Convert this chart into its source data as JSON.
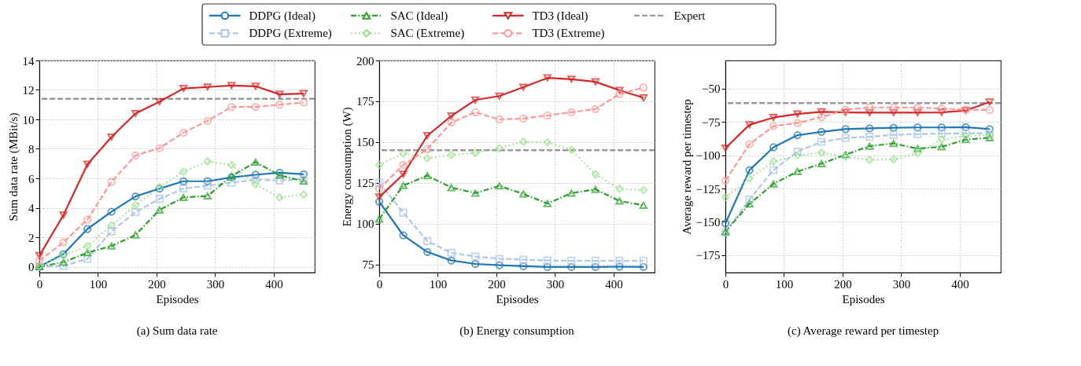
{
  "chart_data": [
    {
      "type": "line",
      "title": "(a) Sum data rate",
      "xlabel": "Episodes",
      "ylabel": "Sum data rate (MBit/s)",
      "x": [
        0,
        41,
        82,
        123,
        164,
        205,
        246,
        287,
        328,
        369,
        410,
        451
      ],
      "xlim": [
        0,
        470
      ],
      "xticks": [
        0,
        100,
        200,
        300,
        400
      ],
      "ylim": [
        -0.4,
        14
      ],
      "yticks": [
        0,
        2,
        4,
        6,
        8,
        10,
        12,
        14
      ],
      "grid": true,
      "legend": "top",
      "series": [
        {
          "name": "DDPG (Ideal)",
          "color": "#1f77b4",
          "marker": "circle",
          "line_style": "solid",
          "values": [
            0.0,
            0.85,
            2.56,
            3.73,
            4.77,
            5.3,
            5.8,
            5.8,
            6.06,
            6.24,
            6.38,
            6.27
          ]
        },
        {
          "name": "DDPG (Extreme)",
          "color": "#aec7e8",
          "marker": "square",
          "line_style": "dashed",
          "values": [
            0.0,
            0.05,
            0.53,
            2.4,
            3.7,
            4.6,
            5.3,
            5.5,
            5.7,
            5.9,
            5.85,
            5.95
          ]
        },
        {
          "name": "SAC (Ideal)",
          "color": "#2ca02c",
          "marker": "triangle",
          "line_style": "dashdot",
          "values": [
            0.0,
            0.3,
            0.95,
            1.4,
            2.15,
            3.85,
            4.7,
            4.8,
            6.15,
            7.1,
            6.2,
            5.8
          ]
        },
        {
          "name": "SAC (Extreme)",
          "color": "#98df8a",
          "marker": "diamond",
          "line_style": "dotted",
          "values": [
            0.05,
            0.75,
            1.4,
            2.8,
            4.17,
            5.4,
            6.45,
            7.15,
            6.9,
            5.6,
            4.7,
            4.9
          ]
        },
        {
          "name": "TD3 (Ideal)",
          "color": "#d62728",
          "marker": "triangle-down",
          "line_style": "solid",
          "values": [
            0.75,
            3.5,
            6.95,
            8.8,
            10.4,
            11.2,
            12.1,
            12.2,
            12.3,
            12.25,
            11.7,
            11.75
          ]
        },
        {
          "name": "TD3 (Extreme)",
          "color": "#ff9896",
          "marker": "circle",
          "line_style": "dashed",
          "values": [
            0.4,
            1.65,
            3.2,
            5.75,
            7.55,
            8.05,
            9.1,
            9.9,
            10.85,
            10.85,
            11.0,
            11.15
          ]
        }
      ],
      "ref_lines": [
        {
          "axis": "y",
          "value": 11.4,
          "label": "Expert",
          "color": "#999999",
          "line_style": "dashed"
        }
      ]
    },
    {
      "type": "line",
      "title": "(b) Energy consumption",
      "xlabel": "Episodes",
      "ylabel": "Energy consumption (W)",
      "x": [
        0,
        41,
        82,
        123,
        164,
        205,
        246,
        287,
        328,
        369,
        410,
        451
      ],
      "xlim": [
        0,
        470
      ],
      "xticks": [
        0,
        100,
        200,
        300,
        400
      ],
      "ylim": [
        70,
        200
      ],
      "yticks": [
        75,
        100,
        125,
        150,
        175,
        200
      ],
      "grid": true,
      "legend": "top",
      "series": [
        {
          "name": "DDPG (Ideal)",
          "color": "#1f77b4",
          "marker": "circle",
          "line_style": "solid",
          "values": [
            113.4,
            92.8,
            82.6,
            77.4,
            75.3,
            74.5,
            73.9,
            73.4,
            73.4,
            73.4,
            73.6,
            73.4
          ]
        },
        {
          "name": "DDPG (Extreme)",
          "color": "#aec7e8",
          "marker": "square",
          "line_style": "dashed",
          "values": [
            125,
            106.7,
            89.3,
            82.1,
            79.8,
            78.5,
            77.9,
            77.4,
            77.2,
            77.2,
            77.2,
            77.2
          ]
        },
        {
          "name": "SAC (Ideal)",
          "color": "#2ca02c",
          "marker": "triangle",
          "line_style": "dashdot",
          "values": [
            102.8,
            123.4,
            129.4,
            122.1,
            118.7,
            123.1,
            118.2,
            112.3,
            118.7,
            121,
            113.9,
            111.2
          ]
        },
        {
          "name": "SAC (Extreme)",
          "color": "#98df8a",
          "marker": "diamond",
          "line_style": "dotted",
          "values": [
            136,
            143,
            140.1,
            142,
            143.3,
            146.1,
            150.2,
            149.9,
            145.2,
            130.1,
            121.3,
            120.6
          ]
        },
        {
          "name": "TD3 (Ideal)",
          "color": "#d62728",
          "marker": "triangle-down",
          "line_style": "solid",
          "values": [
            116.3,
            130.2,
            153.9,
            166,
            175.8,
            178.2,
            183.6,
            189.3,
            188.5,
            186.9,
            181.7,
            177.1
          ]
        },
        {
          "name": "TD3 (Extreme)",
          "color": "#ff9896",
          "marker": "circle",
          "line_style": "dashed",
          "values": [
            121.3,
            136,
            145.6,
            162,
            168.2,
            163.9,
            164.4,
            166.3,
            168.3,
            170.2,
            179.4,
            183.4
          ]
        }
      ],
      "ref_lines": [
        {
          "axis": "y",
          "value": 145,
          "color": "#999999",
          "line_style": "dashed"
        }
      ]
    },
    {
      "type": "line",
      "title": "(c) Average reward per timestep",
      "xlabel": "Episodes",
      "ylabel": "Average reward per timestep",
      "x": [
        0,
        41,
        82,
        123,
        164,
        205,
        246,
        287,
        328,
        369,
        410,
        451
      ],
      "xlim": [
        0,
        470
      ],
      "xticks": [
        0,
        100,
        200,
        300,
        400
      ],
      "ylim": [
        -188,
        -29
      ],
      "yticks": [
        {
          "value": -175,
          "label": "−175"
        },
        {
          "value": -150,
          "label": "−150"
        },
        {
          "value": -125,
          "label": "−125"
        },
        {
          "value": -100,
          "label": "−100"
        },
        {
          "value": -75,
          "label": "−75"
        },
        {
          "value": -50,
          "label": "−50"
        }
      ],
      "grid": true,
      "legend": "top",
      "series": [
        {
          "name": "DDPG (Ideal)",
          "color": "#1f77b4",
          "marker": "circle",
          "line_style": "solid",
          "values": [
            -151.1,
            -111.2,
            -94.1,
            -85,
            -82.5,
            -80.5,
            -79.9,
            -79.4,
            -79.2,
            -79.2,
            -79,
            -80.5
          ]
        },
        {
          "name": "DDPG (Extreme)",
          "color": "#aec7e8",
          "marker": "square",
          "line_style": "dashed",
          "values": [
            -157.9,
            -133.2,
            -111.2,
            -97.2,
            -90,
            -87.1,
            -86.2,
            -84.8,
            -84.2,
            -83.8,
            -83.6,
            -83.6
          ]
        },
        {
          "name": "SAC (Ideal)",
          "color": "#2ca02c",
          "marker": "triangle",
          "line_style": "dashdot",
          "values": [
            -157.3,
            -136.5,
            -121.5,
            -112.2,
            -106.4,
            -99.6,
            -93.2,
            -91.2,
            -95.1,
            -93.7,
            -88.3,
            -86.9
          ]
        },
        {
          "name": "SAC (Extreme)",
          "color": "#98df8a",
          "marker": "diamond",
          "line_style": "dotted",
          "values": [
            -131.6,
            -117.5,
            -104.8,
            -100.2,
            -98.2,
            -101.3,
            -103.5,
            -103.1,
            -98.6,
            -88.3,
            -85.4,
            -85
          ]
        },
        {
          "name": "TD3 (Ideal)",
          "color": "#d62728",
          "marker": "triangle-down",
          "line_style": "solid",
          "values": [
            -94.7,
            -77.2,
            -71.8,
            -69.1,
            -67.5,
            -67.9,
            -68.1,
            -68.1,
            -68.1,
            -67.9,
            -66.5,
            -60.1
          ]
        },
        {
          "name": "TD3 (Extreme)",
          "color": "#ff9896",
          "marker": "circle",
          "line_style": "dashed",
          "values": [
            -119,
            -91.8,
            -78.2,
            -75.9,
            -71.4,
            -66.1,
            -64.2,
            -64.2,
            -64.4,
            -65,
            -65.9,
            -66.1
          ]
        }
      ],
      "ref_lines": [
        {
          "axis": "y",
          "value": -61,
          "color": "#999999",
          "line_style": "dashed"
        }
      ]
    }
  ]
}
